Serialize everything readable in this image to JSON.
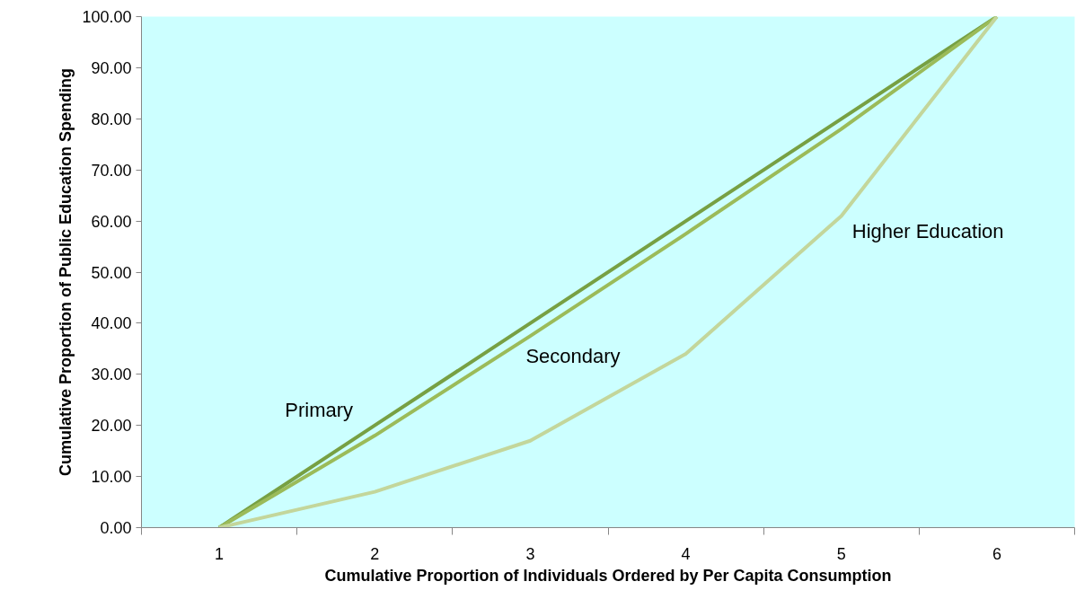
{
  "chart_data": {
    "type": "line",
    "xlabel": "Cumulative Proportion of Individuals Ordered by Per Capita Consumption",
    "ylabel": "Cumulative Proportion of Public Education Spending",
    "categories": [
      "1",
      "2",
      "3",
      "4",
      "5",
      "6"
    ],
    "series": [
      {
        "name": "Primary",
        "color": "#77a043",
        "values": [
          0,
          20,
          40,
          60,
          80,
          100
        ]
      },
      {
        "name": "Secondary",
        "color": "#9bbb59",
        "values": [
          0,
          18,
          37.5,
          57.5,
          78,
          100
        ]
      },
      {
        "name": "Higher Education",
        "color": "#c3d69b",
        "values": [
          0,
          7,
          17,
          34,
          61,
          100
        ]
      }
    ],
    "ylim": [
      0,
      100
    ],
    "yticks": [
      {
        "value": 0,
        "label": "0.00"
      },
      {
        "value": 10,
        "label": "10.00"
      },
      {
        "value": 20,
        "label": "20.00"
      },
      {
        "value": 30,
        "label": "30.00"
      },
      {
        "value": 40,
        "label": "40.00"
      },
      {
        "value": 50,
        "label": "50.00"
      },
      {
        "value": 60,
        "label": "60.00"
      },
      {
        "value": 70,
        "label": "70.00"
      },
      {
        "value": 80,
        "label": "80.00"
      },
      {
        "value": 90,
        "label": "90.00"
      },
      {
        "value": 100,
        "label": "100.00"
      }
    ],
    "grid": false,
    "legend": false,
    "marker": "none",
    "line_style": "solid"
  }
}
